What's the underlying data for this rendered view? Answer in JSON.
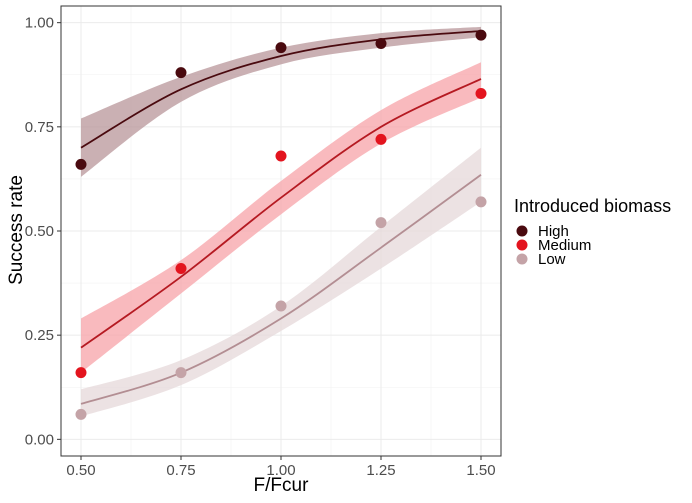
{
  "chart_data": {
    "type": "scatter",
    "xlabel": "F/Fcur",
    "ylabel": "Success rate",
    "xlim": [
      0.45,
      1.55
    ],
    "ylim": [
      -0.04,
      1.04
    ],
    "x_ticks": [
      "0.50",
      "0.75",
      "1.00",
      "1.25",
      "1.50"
    ],
    "y_ticks": [
      "0.00",
      "0.25",
      "0.50",
      "0.75",
      "1.00"
    ],
    "grid": true,
    "legend": {
      "title": "Introduced biomass",
      "position": "right"
    },
    "x": [
      0.5,
      0.75,
      1.0,
      1.25,
      1.5
    ],
    "series": [
      {
        "name": "High",
        "color": "#4a0a0f",
        "band_color": "#b89699",
        "points": [
          0.66,
          0.88,
          0.94,
          0.95,
          0.97
        ],
        "fit": [
          0.7,
          0.84,
          0.92,
          0.96,
          0.98
        ],
        "ci_low": [
          0.63,
          0.81,
          0.9,
          0.94,
          0.965
        ],
        "ci_high": [
          0.77,
          0.87,
          0.94,
          0.975,
          0.99
        ]
      },
      {
        "name": "Medium",
        "color": "#e3141e",
        "line_color": "#b51a22",
        "band_color": "#f7a3a8",
        "points": [
          0.16,
          0.41,
          0.68,
          0.72,
          0.83
        ],
        "fit": [
          0.22,
          0.39,
          0.58,
          0.75,
          0.865
        ],
        "ci_low": [
          0.16,
          0.35,
          0.54,
          0.71,
          0.82
        ],
        "ci_high": [
          0.29,
          0.43,
          0.62,
          0.79,
          0.905
        ]
      },
      {
        "name": "Low",
        "color": "#c4a3a7",
        "line_color": "#b38e93",
        "band_color": "#e6d8da",
        "points": [
          0.06,
          0.16,
          0.32,
          0.52,
          0.57
        ],
        "fit": [
          0.085,
          0.16,
          0.29,
          0.46,
          0.635
        ],
        "ci_low": [
          0.055,
          0.13,
          0.26,
          0.41,
          0.57
        ],
        "ci_high": [
          0.12,
          0.19,
          0.32,
          0.51,
          0.7
        ]
      }
    ]
  }
}
